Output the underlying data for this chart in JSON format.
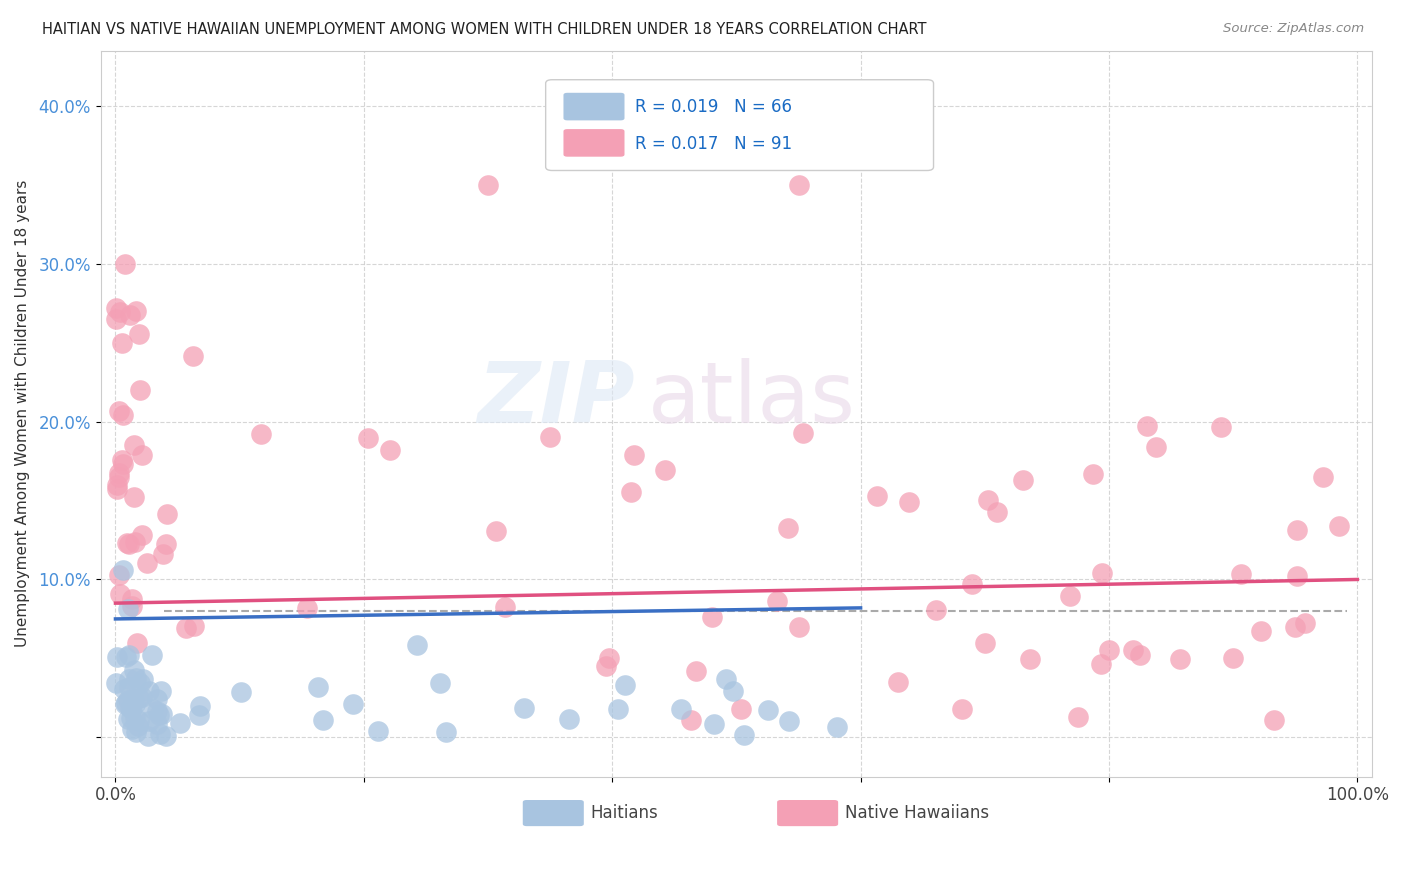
{
  "title": "HAITIAN VS NATIVE HAWAIIAN UNEMPLOYMENT AMONG WOMEN WITH CHILDREN UNDER 18 YEARS CORRELATION CHART",
  "source": "Source: ZipAtlas.com",
  "ylabel": "Unemployment Among Women with Children Under 18 years",
  "haitian_color": "#a8c4e0",
  "nhawaiian_color": "#f4a0b5",
  "haitian_line_color": "#3a6fc4",
  "nhawaiian_line_color": "#e05080",
  "haitian_R": 0.019,
  "haitian_N": 66,
  "nhawaiian_R": 0.017,
  "nhawaiian_N": 91,
  "watermark_zip": "ZIP",
  "watermark_atlas": "atlas",
  "background_color": "#ffffff",
  "dashed_line_y": 0.08
}
